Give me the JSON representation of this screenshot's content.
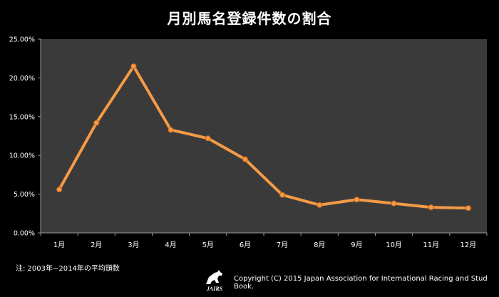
{
  "chart_data": {
    "type": "line",
    "title": "月別馬名登録件数の割合",
    "categories": [
      "1月",
      "2月",
      "3月",
      "4月",
      "5月",
      "6月",
      "7月",
      "8月",
      "9月",
      "10月",
      "11月",
      "12月"
    ],
    "series": [
      {
        "values": [
          5.6,
          14.2,
          21.5,
          13.3,
          12.2,
          9.5,
          4.9,
          3.6,
          4.3,
          3.8,
          3.3,
          3.2
        ]
      }
    ],
    "y_ticks": [
      "0.00%",
      "5.00%",
      "10.00%",
      "15.00%",
      "20.00%",
      "25.00%"
    ],
    "ylim": [
      0,
      25
    ],
    "grid": false,
    "colors": {
      "line": "#f59a45",
      "marker": "#f59a45",
      "plot_bg": "#3a3a3a",
      "page_bg": "#000000"
    }
  },
  "footer": {
    "note": "注: 2003年~2014年の平均頭数",
    "logo_text": "JAIRS",
    "copyright": "Copyright (C) 2015  Japan Association for International Racing and Stud Book."
  }
}
